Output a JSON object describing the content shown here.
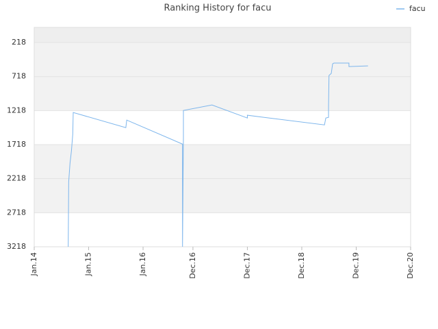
{
  "chart_data": {
    "type": "line",
    "title": "Ranking History for facu",
    "series": [
      {
        "name": "facu",
        "color": "#7cb5ec",
        "x": [
          7.5,
          7.6,
          7.9,
          8.2,
          8.5,
          8.6,
          20.2,
          20.4,
          32.7,
          32.7,
          32.9,
          32.9,
          39.2,
          47,
          47,
          64,
          64.3,
          64.9,
          64.9,
          65,
          65.5,
          65.8,
          66.1,
          69.4,
          69.4,
          73.6
        ],
        "values": [
          3218,
          2265,
          1985,
          1815,
          1563,
          1246,
          1468,
          1357,
          1710,
          3218,
          1594,
          1216,
          1135,
          1327,
          1286,
          1428,
          1327,
          1317,
          1155,
          702,
          672,
          530,
          520,
          520,
          571,
          561
        ]
      }
    ],
    "xlim": [
      0,
      83
    ],
    "xticks": [
      {
        "value": 0,
        "label": "Jan.14"
      },
      {
        "value": 12,
        "label": "Jan.15"
      },
      {
        "value": 24,
        "label": "Jan.16"
      },
      {
        "value": 35,
        "label": "Dec.16"
      },
      {
        "value": 47,
        "label": "Dec.17"
      },
      {
        "value": 59,
        "label": "Dec.18"
      },
      {
        "value": 71,
        "label": "Dec.19"
      },
      {
        "value": 83,
        "label": "Dec.20"
      }
    ],
    "ylim": [
      3218,
      -4
    ],
    "yticks": [
      218,
      718,
      1218,
      1718,
      2218,
      2718,
      3218
    ],
    "grid": true,
    "legend": "top-right"
  }
}
